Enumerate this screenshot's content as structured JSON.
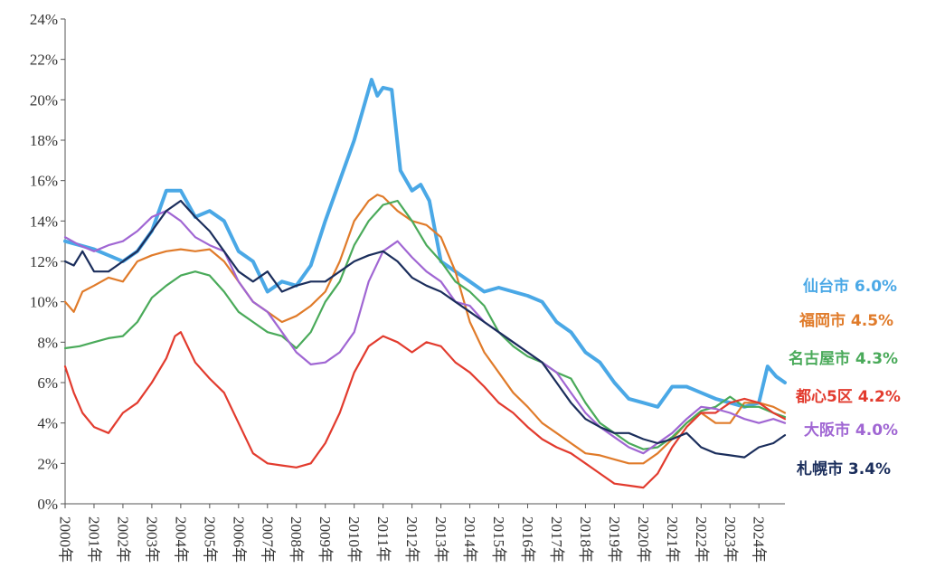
{
  "chart_data": {
    "type": "line",
    "y_unit": "%",
    "ylim": [
      0,
      24
    ],
    "y_ticks": [
      "0%",
      "2%",
      "4%",
      "6%",
      "8%",
      "10%",
      "12%",
      "14%",
      "16%",
      "18%",
      "20%",
      "22%",
      "24%"
    ],
    "x_ticks": [
      "2000年",
      "2001年",
      "2002年",
      "2003年",
      "2004年",
      "2005年",
      "2006年",
      "2007年",
      "2008年",
      "2009年",
      "2010年",
      "2011年",
      "2012年",
      "2013年",
      "2014年",
      "2015年",
      "2016年",
      "2017年",
      "2018年",
      "2019年",
      "2020年",
      "2021年",
      "2022年",
      "2023年",
      "2024年"
    ],
    "xlim": [
      2000.0,
      2024.9
    ],
    "grid": false,
    "legend": "labels at right end of lines",
    "series": [
      {
        "name": "仙台市",
        "label": "仙台市 6.0%",
        "color": "#4aa8e6",
        "x": [
          2000.0,
          2000.5,
          2001.0,
          2001.5,
          2002.0,
          2002.5,
          2003.0,
          2003.5,
          2004.0,
          2004.5,
          2005.0,
          2005.5,
          2006.0,
          2006.5,
          2007.0,
          2007.5,
          2008.0,
          2008.5,
          2009.0,
          2009.5,
          2010.0,
          2010.4,
          2010.6,
          2010.8,
          2011.0,
          2011.3,
          2011.6,
          2012.0,
          2012.3,
          2012.6,
          2013.0,
          2013.5,
          2014.0,
          2014.5,
          2015.0,
          2015.5,
          2016.0,
          2016.5,
          2017.0,
          2017.5,
          2018.0,
          2018.5,
          2019.0,
          2019.5,
          2020.0,
          2020.5,
          2021.0,
          2021.5,
          2022.0,
          2022.5,
          2023.0,
          2023.5,
          2024.0,
          2024.3,
          2024.6,
          2024.9
        ],
        "values": [
          13.0,
          12.8,
          12.6,
          12.3,
          12.0,
          12.5,
          13.5,
          15.5,
          15.5,
          14.2,
          14.5,
          14.0,
          12.5,
          12.0,
          10.5,
          11.0,
          10.8,
          11.8,
          14.0,
          16.0,
          18.0,
          20.0,
          21.0,
          20.2,
          20.6,
          20.5,
          16.5,
          15.5,
          15.8,
          15.0,
          12.0,
          11.5,
          11.0,
          10.5,
          10.7,
          10.5,
          10.3,
          10.0,
          9.0,
          8.5,
          7.5,
          7.0,
          6.0,
          5.2,
          5.0,
          4.8,
          5.8,
          5.8,
          5.5,
          5.2,
          5.0,
          4.8,
          5.0,
          6.8,
          6.3,
          6.0
        ]
      },
      {
        "name": "福岡市",
        "label": "福岡市 4.5%",
        "color": "#e07b2a",
        "x": [
          2000.0,
          2000.3,
          2000.6,
          2001.0,
          2001.5,
          2002.0,
          2002.5,
          2003.0,
          2003.5,
          2004.0,
          2004.5,
          2005.0,
          2005.5,
          2006.0,
          2006.5,
          2007.0,
          2007.5,
          2008.0,
          2008.5,
          2009.0,
          2009.5,
          2010.0,
          2010.5,
          2010.8,
          2011.0,
          2011.5,
          2012.0,
          2012.5,
          2013.0,
          2013.5,
          2014.0,
          2014.5,
          2015.0,
          2015.5,
          2016.0,
          2016.5,
          2017.0,
          2017.5,
          2018.0,
          2018.5,
          2019.0,
          2019.5,
          2020.0,
          2020.5,
          2021.0,
          2021.5,
          2022.0,
          2022.5,
          2023.0,
          2023.5,
          2024.0,
          2024.5,
          2024.9
        ],
        "values": [
          10.0,
          9.5,
          10.5,
          10.8,
          11.2,
          11.0,
          12.0,
          12.3,
          12.5,
          12.6,
          12.5,
          12.6,
          12.0,
          11.0,
          10.0,
          9.5,
          9.0,
          9.3,
          9.8,
          10.5,
          12.0,
          14.0,
          15.0,
          15.3,
          15.2,
          14.5,
          14.0,
          13.8,
          13.2,
          11.5,
          9.0,
          7.5,
          6.5,
          5.5,
          4.8,
          4.0,
          3.5,
          3.0,
          2.5,
          2.4,
          2.2,
          2.0,
          2.0,
          2.5,
          3.2,
          4.0,
          4.5,
          4.0,
          4.0,
          5.0,
          5.0,
          4.8,
          4.5
        ]
      },
      {
        "name": "名古屋市",
        "label": "名古屋市 4.3%",
        "color": "#4aaa5a",
        "x": [
          2000.0,
          2000.5,
          2001.0,
          2001.5,
          2002.0,
          2002.5,
          2003.0,
          2003.5,
          2004.0,
          2004.5,
          2005.0,
          2005.5,
          2006.0,
          2006.5,
          2007.0,
          2007.5,
          2008.0,
          2008.5,
          2009.0,
          2009.5,
          2010.0,
          2010.5,
          2011.0,
          2011.5,
          2012.0,
          2012.5,
          2013.0,
          2013.5,
          2014.0,
          2014.5,
          2015.0,
          2015.5,
          2016.0,
          2016.5,
          2017.0,
          2017.5,
          2018.0,
          2018.5,
          2019.0,
          2019.5,
          2020.0,
          2020.5,
          2021.0,
          2021.5,
          2022.0,
          2022.5,
          2023.0,
          2023.5,
          2024.0,
          2024.5,
          2024.9
        ],
        "values": [
          7.7,
          7.8,
          8.0,
          8.2,
          8.3,
          9.0,
          10.2,
          10.8,
          11.3,
          11.5,
          11.3,
          10.5,
          9.5,
          9.0,
          8.5,
          8.3,
          7.7,
          8.5,
          10.0,
          11.0,
          12.8,
          14.0,
          14.8,
          15.0,
          14.0,
          12.8,
          12.0,
          11.0,
          10.5,
          9.8,
          8.5,
          7.8,
          7.3,
          7.0,
          6.5,
          6.2,
          5.0,
          4.0,
          3.5,
          3.0,
          2.7,
          2.8,
          3.3,
          4.0,
          4.6,
          4.8,
          5.3,
          4.8,
          4.8,
          4.5,
          4.3
        ]
      },
      {
        "name": "都心5区",
        "label": "都心5区 4.2%",
        "color": "#e23b2e",
        "x": [
          2000.0,
          2000.3,
          2000.6,
          2001.0,
          2001.5,
          2002.0,
          2002.5,
          2003.0,
          2003.5,
          2003.8,
          2004.0,
          2004.5,
          2005.0,
          2005.5,
          2006.0,
          2006.5,
          2007.0,
          2007.5,
          2008.0,
          2008.5,
          2009.0,
          2009.5,
          2010.0,
          2010.5,
          2011.0,
          2011.5,
          2012.0,
          2012.5,
          2013.0,
          2013.5,
          2014.0,
          2014.5,
          2015.0,
          2015.5,
          2016.0,
          2016.5,
          2017.0,
          2017.5,
          2018.0,
          2018.5,
          2019.0,
          2019.5,
          2020.0,
          2020.5,
          2021.0,
          2021.5,
          2022.0,
          2022.5,
          2023.0,
          2023.5,
          2024.0,
          2024.5,
          2024.9
        ],
        "values": [
          6.8,
          5.5,
          4.5,
          3.8,
          3.5,
          4.5,
          5.0,
          6.0,
          7.2,
          8.3,
          8.5,
          7.0,
          6.2,
          5.5,
          4.0,
          2.5,
          2.0,
          1.9,
          1.8,
          2.0,
          3.0,
          4.5,
          6.5,
          7.8,
          8.3,
          8.0,
          7.5,
          8.0,
          7.8,
          7.0,
          6.5,
          5.8,
          5.0,
          4.5,
          3.8,
          3.2,
          2.8,
          2.5,
          2.0,
          1.5,
          1.0,
          0.9,
          0.8,
          1.5,
          2.8,
          3.8,
          4.5,
          4.5,
          5.0,
          5.2,
          5.0,
          4.5,
          4.2
        ]
      },
      {
        "name": "大阪市",
        "label": "大阪市 4.0%",
        "color": "#a066d3",
        "x": [
          2000.0,
          2000.5,
          2001.0,
          2001.5,
          2002.0,
          2002.5,
          2003.0,
          2003.5,
          2004.0,
          2004.5,
          2005.0,
          2005.5,
          2006.0,
          2006.5,
          2007.0,
          2007.5,
          2008.0,
          2008.5,
          2009.0,
          2009.5,
          2010.0,
          2010.5,
          2011.0,
          2011.5,
          2012.0,
          2012.5,
          2013.0,
          2013.5,
          2014.0,
          2014.5,
          2015.0,
          2015.5,
          2016.0,
          2016.5,
          2017.0,
          2017.5,
          2018.0,
          2018.5,
          2019.0,
          2019.5,
          2020.0,
          2020.5,
          2021.0,
          2021.5,
          2022.0,
          2022.5,
          2023.0,
          2023.5,
          2024.0,
          2024.5,
          2024.9
        ],
        "values": [
          13.2,
          12.8,
          12.5,
          12.8,
          13.0,
          13.5,
          14.2,
          14.5,
          14.0,
          13.2,
          12.8,
          12.5,
          11.0,
          10.0,
          9.5,
          8.5,
          7.5,
          6.9,
          7.0,
          7.5,
          8.5,
          11.0,
          12.5,
          13.0,
          12.2,
          11.5,
          11.0,
          10.0,
          9.8,
          9.0,
          8.5,
          8.0,
          7.5,
          7.0,
          6.5,
          5.5,
          4.5,
          3.8,
          3.3,
          2.8,
          2.5,
          3.0,
          3.5,
          4.2,
          4.8,
          4.7,
          4.5,
          4.2,
          4.0,
          4.2,
          4.0
        ]
      },
      {
        "name": "札幌市",
        "label": "札幌市 3.4%",
        "color": "#1b2e5c",
        "x": [
          2000.0,
          2000.3,
          2000.6,
          2001.0,
          2001.5,
          2002.0,
          2002.5,
          2003.0,
          2003.5,
          2004.0,
          2004.5,
          2005.0,
          2005.5,
          2006.0,
          2006.5,
          2007.0,
          2007.5,
          2008.0,
          2008.5,
          2009.0,
          2009.5,
          2010.0,
          2010.5,
          2011.0,
          2011.5,
          2012.0,
          2012.5,
          2013.0,
          2013.5,
          2014.0,
          2014.5,
          2015.0,
          2015.5,
          2016.0,
          2016.5,
          2017.0,
          2017.5,
          2018.0,
          2018.5,
          2019.0,
          2019.5,
          2020.0,
          2020.5,
          2021.0,
          2021.5,
          2022.0,
          2022.5,
          2023.0,
          2023.5,
          2024.0,
          2024.5,
          2024.9
        ],
        "values": [
          12.0,
          11.8,
          12.5,
          11.5,
          11.5,
          12.0,
          12.5,
          13.5,
          14.5,
          15.0,
          14.2,
          13.5,
          12.5,
          11.5,
          11.0,
          11.5,
          10.5,
          10.8,
          11.0,
          11.0,
          11.5,
          12.0,
          12.3,
          12.5,
          12.0,
          11.2,
          10.8,
          10.5,
          10.0,
          9.5,
          9.0,
          8.5,
          8.0,
          7.5,
          7.0,
          6.0,
          5.0,
          4.2,
          3.8,
          3.5,
          3.5,
          3.2,
          3.0,
          3.2,
          3.5,
          2.8,
          2.5,
          2.4,
          2.3,
          2.8,
          3.0,
          3.4
        ]
      }
    ]
  }
}
